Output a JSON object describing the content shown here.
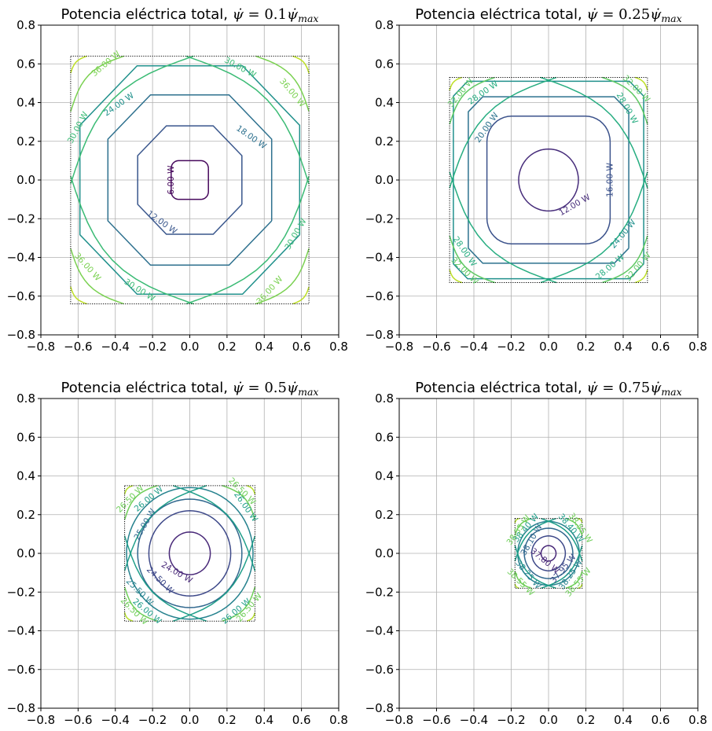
{
  "figure": {
    "title_prefix": "Potencia eléctrica total,",
    "tick_labels": [
      "−0.8",
      "−0.6",
      "−0.4",
      "−0.2",
      "0.0",
      "0.2",
      "0.4",
      "0.6",
      "0.8"
    ]
  },
  "chart_data": [
    {
      "type": "contour",
      "title": "Potencia eléctrica total, ψ̇ = 0.1ψ̇_max",
      "title_math": {
        "coef": "0.1",
        "sub": "max"
      },
      "xlim": [
        -0.8,
        0.8
      ],
      "ylim": [
        -0.8,
        0.8
      ],
      "grid": true,
      "xticks": [
        -0.8,
        -0.6,
        -0.4,
        -0.2,
        0.0,
        0.2,
        0.4,
        0.6,
        0.8
      ],
      "yticks": [
        -0.8,
        -0.6,
        -0.4,
        -0.2,
        0.0,
        0.2,
        0.4,
        0.6,
        0.8
      ],
      "boundary_half_width": 0.64,
      "contours": [
        {
          "level": 6.0,
          "label": "6.00 W",
          "color": "#46085c",
          "shape": "square",
          "r": 0.1,
          "k": 0.6
        },
        {
          "level": 12.0,
          "label": "12.00 W",
          "color": "#39568c",
          "shape": "octagon",
          "r": 0.28,
          "k": 0.45
        },
        {
          "level": 18.0,
          "label": "18.00 W",
          "color": "#2d708e",
          "shape": "octagon",
          "r": 0.44,
          "k": 0.48
        },
        {
          "level": 24.0,
          "label": "24.00 W",
          "color": "#21918c",
          "shape": "octagon",
          "r": 0.59,
          "k": 0.48
        },
        {
          "level": 30.0,
          "label": "30.00 W",
          "color": "#3bbb75",
          "shape": "corner",
          "d": 0.3
        },
        {
          "level": 36.0,
          "label": "36.00 W",
          "color": "#7ad151",
          "shape": "corner",
          "d": 0.13
        },
        {
          "level": 42.0,
          "label": "",
          "color": "#bddf26",
          "shape": "corner",
          "d": 0.04
        }
      ],
      "labels": [
        {
          "text": "6.00 W",
          "x": -0.1,
          "y": 0.0,
          "angle": -90,
          "color": "#46085c"
        },
        {
          "text": "12.00 W",
          "x": -0.15,
          "y": -0.22,
          "angle": 35,
          "color": "#39568c"
        },
        {
          "text": "18.00 W",
          "x": 0.33,
          "y": 0.22,
          "angle": 35,
          "color": "#2d708e"
        },
        {
          "text": "24.00 W",
          "x": -0.38,
          "y": 0.39,
          "angle": -35,
          "color": "#21918c"
        },
        {
          "text": "30.00 W",
          "x": 0.27,
          "y": 0.58,
          "angle": 28,
          "color": "#3bbb75"
        },
        {
          "text": "30.00 W",
          "x": -0.6,
          "y": 0.27,
          "angle": -62,
          "color": "#3bbb75"
        },
        {
          "text": "30.00 W",
          "x": 0.57,
          "y": -0.28,
          "angle": -60,
          "color": "#3bbb75"
        },
        {
          "text": "30.00 W",
          "x": -0.27,
          "y": -0.57,
          "angle": 32,
          "color": "#3bbb75"
        },
        {
          "text": "36.00 W",
          "x": -0.45,
          "y": 0.6,
          "angle": -40,
          "color": "#7ad151"
        },
        {
          "text": "36.00 W",
          "x": 0.55,
          "y": 0.45,
          "angle": 50,
          "color": "#7ad151"
        },
        {
          "text": "36.00 W",
          "x": -0.55,
          "y": -0.45,
          "angle": 48,
          "color": "#7ad151"
        },
        {
          "text": "36.00 W",
          "x": 0.43,
          "y": -0.57,
          "angle": -48,
          "color": "#7ad151"
        }
      ]
    },
    {
      "type": "contour",
      "title": "Potencia eléctrica total, ψ̇ = 0.25ψ̇_max",
      "title_math": {
        "coef": "0.25",
        "sub": "max"
      },
      "xlim": [
        -0.8,
        0.8
      ],
      "ylim": [
        -0.8,
        0.8
      ],
      "grid": true,
      "xticks": [
        -0.8,
        -0.6,
        -0.4,
        -0.2,
        0.0,
        0.2,
        0.4,
        0.6,
        0.8
      ],
      "yticks": [
        -0.8,
        -0.6,
        -0.4,
        -0.2,
        0.0,
        0.2,
        0.4,
        0.6,
        0.8
      ],
      "boundary_half_width": 0.53,
      "contours": [
        {
          "level": 12.0,
          "label": "12.00 W",
          "color": "#472d7b",
          "shape": "circle",
          "r": 0.16
        },
        {
          "level": 16.0,
          "label": "16.00 W",
          "color": "#3b528b",
          "shape": "rsquare",
          "r": 0.33,
          "k": 0.6
        },
        {
          "level": 20.0,
          "label": "20.00 W",
          "color": "#2c728e",
          "shape": "octagon",
          "r": 0.43,
          "k": 0.82
        },
        {
          "level": 24.0,
          "label": "24.00 W",
          "color": "#21908d",
          "shape": "octagon",
          "r": 0.51,
          "k": 0.85
        },
        {
          "level": 28.0,
          "label": "28.00 W",
          "color": "#27ad81",
          "shape": "corner",
          "d": 0.26
        },
        {
          "level": 32.0,
          "label": "32.00 W",
          "color": "#5ec962",
          "shape": "corner",
          "d": 0.11
        },
        {
          "level": 36.0,
          "label": "",
          "color": "#bddf26",
          "shape": "corner",
          "d": 0.03
        }
      ],
      "labels": [
        {
          "text": "12.00 W",
          "x": 0.14,
          "y": -0.13,
          "angle": -30,
          "color": "#472d7b"
        },
        {
          "text": "16.00 W",
          "x": 0.33,
          "y": 0.0,
          "angle": -90,
          "color": "#3b528b"
        },
        {
          "text": "20.00 W",
          "x": -0.33,
          "y": 0.27,
          "angle": -55,
          "color": "#2c728e"
        },
        {
          "text": "24.00 W",
          "x": 0.4,
          "y": -0.28,
          "angle": -50,
          "color": "#21908d"
        },
        {
          "text": "28.00 W",
          "x": -0.35,
          "y": 0.45,
          "angle": -35,
          "color": "#27ad81"
        },
        {
          "text": "28.00 W",
          "x": 0.42,
          "y": 0.37,
          "angle": 60,
          "color": "#27ad81"
        },
        {
          "text": "28.00 W",
          "x": -0.45,
          "y": -0.37,
          "angle": 55,
          "color": "#27ad81"
        },
        {
          "text": "28.00 W",
          "x": 0.33,
          "y": -0.45,
          "angle": -40,
          "color": "#27ad81"
        },
        {
          "text": "32.00 W",
          "x": -0.47,
          "y": 0.45,
          "angle": -50,
          "color": "#5ec962"
        },
        {
          "text": "32.00 W",
          "x": 0.47,
          "y": 0.47,
          "angle": 45,
          "color": "#5ec962"
        },
        {
          "text": "32.00 W",
          "x": -0.45,
          "y": -0.47,
          "angle": 45,
          "color": "#5ec962"
        },
        {
          "text": "32.00 W",
          "x": 0.48,
          "y": -0.45,
          "angle": -50,
          "color": "#5ec962"
        }
      ]
    },
    {
      "type": "contour",
      "title": "Potencia eléctrica total, ψ̇ = 0.5ψ̇_max",
      "title_math": {
        "coef": "0.5",
        "sub": "max"
      },
      "xlim": [
        -0.8,
        0.8
      ],
      "ylim": [
        -0.8,
        0.8
      ],
      "grid": true,
      "xticks": [
        -0.8,
        -0.6,
        -0.4,
        -0.2,
        0.0,
        0.2,
        0.4,
        0.6,
        0.8
      ],
      "yticks": [
        -0.8,
        -0.6,
        -0.4,
        -0.2,
        0.0,
        0.2,
        0.4,
        0.6,
        0.8
      ],
      "boundary_half_width": 0.35,
      "contours": [
        {
          "level": 24.0,
          "label": "24.00 W",
          "color": "#482878",
          "shape": "circle",
          "r": 0.11
        },
        {
          "level": 24.5,
          "label": "24.50 W",
          "color": "#3e4989",
          "shape": "circle",
          "r": 0.22
        },
        {
          "level": 25.0,
          "label": "25.00 W",
          "color": "#31688e",
          "shape": "circle",
          "r": 0.28
        },
        {
          "level": 25.5,
          "label": "25.50 W",
          "color": "#26828e",
          "shape": "circle",
          "r": 0.34
        },
        {
          "level": 26.0,
          "label": "26.00 W",
          "color": "#1f9e89",
          "shape": "corner",
          "d": 0.2
        },
        {
          "level": 26.5,
          "label": "26.50 W",
          "color": "#6ece58",
          "shape": "corner",
          "d": 0.08
        },
        {
          "level": 27.0,
          "label": "",
          "color": "#b5de2b",
          "shape": "corner",
          "d": 0.02
        }
      ],
      "labels": [
        {
          "text": "24.00 W",
          "x": -0.07,
          "y": -0.1,
          "angle": 30,
          "color": "#482878"
        },
        {
          "text": "24.50 W",
          "x": -0.16,
          "y": -0.14,
          "angle": 45,
          "color": "#3e4989"
        },
        {
          "text": "25.00 W",
          "x": -0.24,
          "y": 0.15,
          "angle": -60,
          "color": "#31688e"
        },
        {
          "text": "25.50 W",
          "x": -0.27,
          "y": -0.2,
          "angle": 45,
          "color": "#26828e"
        },
        {
          "text": "26.00 W",
          "x": -0.22,
          "y": 0.28,
          "angle": -40,
          "color": "#1f9e89"
        },
        {
          "text": "26.00 W",
          "x": 0.3,
          "y": 0.24,
          "angle": 55,
          "color": "#1f9e89"
        },
        {
          "text": "26.00 W",
          "x": -0.23,
          "y": -0.3,
          "angle": 40,
          "color": "#1f9e89"
        },
        {
          "text": "26.00 W",
          "x": 0.25,
          "y": -0.3,
          "angle": -40,
          "color": "#1f9e89"
        },
        {
          "text": "26.50 W",
          "x": -0.32,
          "y": 0.28,
          "angle": -45,
          "color": "#6ece58"
        },
        {
          "text": "26.50 W",
          "x": 0.28,
          "y": 0.32,
          "angle": 45,
          "color": "#6ece58"
        },
        {
          "text": "26.50 W",
          "x": -0.3,
          "y": -0.3,
          "angle": 45,
          "color": "#6ece58"
        },
        {
          "text": "26.50 W",
          "x": 0.32,
          "y": -0.28,
          "angle": -50,
          "color": "#6ece58"
        }
      ]
    },
    {
      "type": "contour",
      "title": "Potencia eléctrica total, ψ̇ = 0.75ψ̇_max",
      "title_math": {
        "coef": "0.75",
        "sub": "max"
      },
      "xlim": [
        -0.8,
        0.8
      ],
      "ylim": [
        -0.8,
        0.8
      ],
      "grid": true,
      "xticks": [
        -0.8,
        -0.6,
        -0.4,
        -0.2,
        0.0,
        0.2,
        0.4,
        0.6,
        0.8
      ],
      "yticks": [
        -0.8,
        -0.6,
        -0.4,
        -0.2,
        0.0,
        0.2,
        0.4,
        0.6,
        0.8
      ],
      "boundary_half_width": 0.18,
      "contours": [
        {
          "level": 37.8,
          "label": "37.80 W",
          "color": "#482878",
          "shape": "circle",
          "r": 0.04
        },
        {
          "level": 37.95,
          "label": "37.95 W",
          "color": "#3e4989",
          "shape": "circle",
          "r": 0.09
        },
        {
          "level": 38.1,
          "label": "38.10 W",
          "color": "#31688e",
          "shape": "circle",
          "r": 0.13
        },
        {
          "level": 38.25,
          "label": "38.25 W",
          "color": "#26828e",
          "shape": "circle",
          "r": 0.165
        },
        {
          "level": 38.4,
          "label": "38.40 W",
          "color": "#1f9e89",
          "shape": "corner",
          "d": 0.1
        },
        {
          "level": 38.55,
          "label": "38.55 W",
          "color": "#6ece58",
          "shape": "corner",
          "d": 0.04
        },
        {
          "level": 38.7,
          "label": "",
          "color": "#b5de2b",
          "shape": "corner",
          "d": 0.01
        }
      ],
      "labels": [
        {
          "text": "37.80 W",
          "x": -0.02,
          "y": -0.04,
          "angle": 40,
          "color": "#482878"
        },
        {
          "text": "37.95 W",
          "x": 0.08,
          "y": -0.08,
          "angle": -50,
          "color": "#3e4989"
        },
        {
          "text": "38.10 W",
          "x": -0.09,
          "y": 0.07,
          "angle": -60,
          "color": "#31688e"
        },
        {
          "text": "38.25 W",
          "x": 0.12,
          "y": -0.11,
          "angle": -55,
          "color": "#26828e"
        },
        {
          "text": "38.25 W",
          "x": -0.11,
          "y": -0.11,
          "angle": 50,
          "color": "#26828e"
        },
        {
          "text": "38.40 W",
          "x": -0.12,
          "y": 0.13,
          "angle": -50,
          "color": "#1f9e89"
        },
        {
          "text": "38.40 W",
          "x": 0.12,
          "y": 0.13,
          "angle": 50,
          "color": "#1f9e89"
        },
        {
          "text": "38.55 W",
          "x": -0.16,
          "y": 0.12,
          "angle": -55,
          "color": "#6ece58"
        },
        {
          "text": "38.55 W",
          "x": 0.17,
          "y": 0.13,
          "angle": 55,
          "color": "#6ece58"
        },
        {
          "text": "38.55 W",
          "x": -0.15,
          "y": -0.15,
          "angle": 45,
          "color": "#6ece58"
        },
        {
          "text": "38.55 W",
          "x": 0.16,
          "y": -0.15,
          "angle": -50,
          "color": "#6ece58"
        }
      ]
    }
  ]
}
